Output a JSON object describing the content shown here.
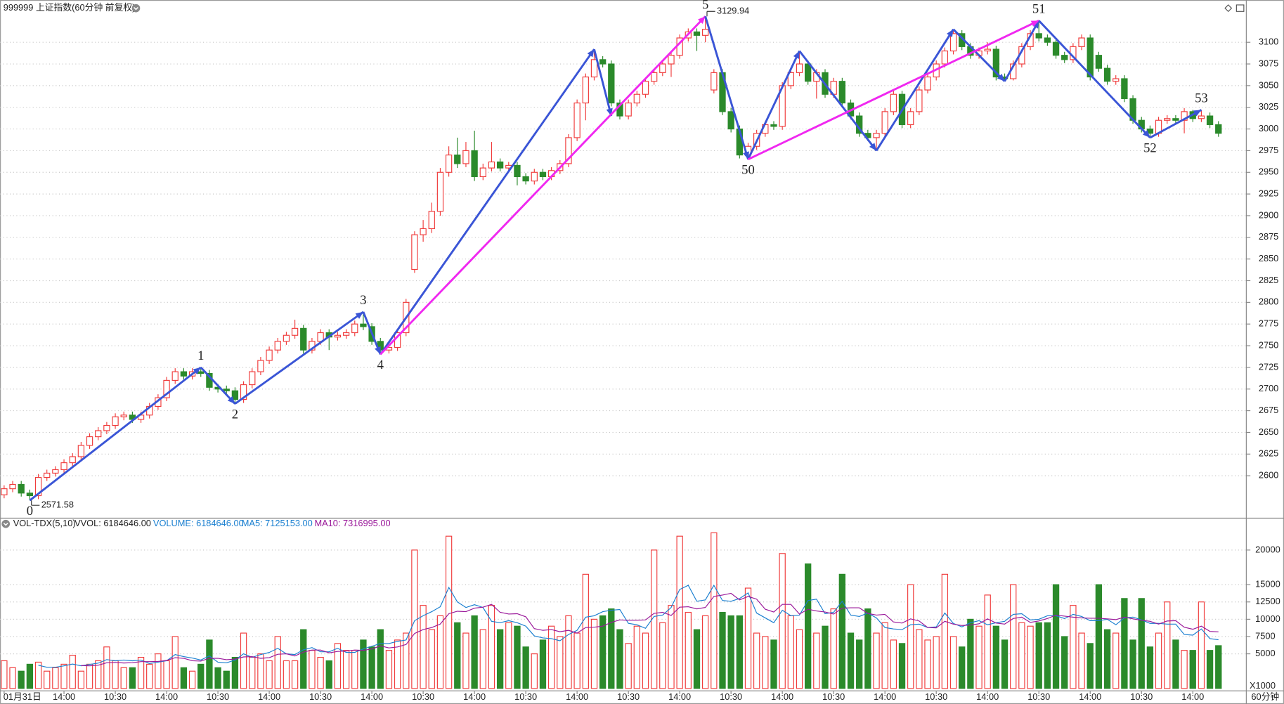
{
  "chart_data": {
    "type": "candlestick",
    "title": "999999 上证指数(60分钟 前复权)",
    "period_label": "60分钟",
    "unit_label": "X1000",
    "up_color": "#f03c3c",
    "down_color": "#2b8a2b",
    "ylim": [
      2552,
      3145
    ],
    "yticks": [
      2600,
      2625,
      2650,
      2675,
      2700,
      2725,
      2750,
      2775,
      2800,
      2825,
      2850,
      2875,
      2900,
      2925,
      2950,
      2975,
      3000,
      3025,
      3050,
      3075,
      3100
    ],
    "grid": true,
    "categories": [
      "01月31日",
      null,
      null,
      null,
      null,
      null,
      null,
      "14:00",
      null,
      null,
      null,
      null,
      null,
      "10:30",
      null,
      null,
      null,
      null,
      null,
      "14:00",
      null,
      null,
      null,
      null,
      null,
      "10:30",
      null,
      null,
      null,
      null,
      null,
      "14:00",
      null,
      null,
      null,
      null,
      null,
      "10:30",
      null,
      null,
      null,
      null,
      null,
      "14:00",
      null,
      null,
      null,
      null,
      null,
      "10:30",
      null,
      null,
      null,
      null,
      null,
      "14:00",
      null,
      null,
      null,
      null,
      null,
      "10:30",
      null,
      null,
      null,
      null,
      null,
      "14:00",
      null,
      null,
      null,
      null,
      null,
      "10:30",
      null,
      null,
      null,
      null,
      null,
      "14:00",
      null,
      null,
      null,
      null,
      null,
      "10:30",
      null,
      null,
      null,
      null,
      null,
      "14:00",
      null,
      null,
      null,
      null,
      null,
      "10:30",
      null,
      null,
      null,
      null,
      null,
      "14:00",
      null,
      null,
      null,
      null,
      null,
      "10:30",
      null,
      null,
      null,
      null,
      null,
      "14:00",
      null,
      null,
      null,
      null,
      null,
      "10:30",
      null,
      null,
      null,
      null,
      null,
      "14:00",
      null,
      null,
      null,
      null,
      null,
      "10:30",
      null,
      null,
      null,
      null,
      null,
      "14:00",
      null,
      null,
      null
    ],
    "candles": [
      [
        2578,
        2589,
        2574,
        2585
      ],
      [
        2585,
        2594,
        2581,
        2590
      ],
      [
        2590,
        2594,
        2576,
        2580
      ],
      [
        2580,
        2584,
        2571.58,
        2577
      ],
      [
        2577,
        2602,
        2573,
        2598
      ],
      [
        2598,
        2607,
        2594,
        2603
      ],
      [
        2603,
        2611,
        2599,
        2607
      ],
      [
        2607,
        2619,
        2603,
        2615
      ],
      [
        2615,
        2626,
        2611,
        2622
      ],
      [
        2622,
        2639,
        2618,
        2635
      ],
      [
        2635,
        2649,
        2631,
        2645
      ],
      [
        2645,
        2656,
        2641,
        2652
      ],
      [
        2652,
        2662,
        2648,
        2658
      ],
      [
        2658,
        2672,
        2654,
        2668
      ],
      [
        2668,
        2674,
        2664,
        2670
      ],
      [
        2670,
        2674,
        2661,
        2665
      ],
      [
        2665,
        2674,
        2661,
        2670
      ],
      [
        2670,
        2684,
        2666,
        2680
      ],
      [
        2680,
        2694,
        2676,
        2690
      ],
      [
        2690,
        2714,
        2686,
        2710
      ],
      [
        2710,
        2724,
        2706,
        2720
      ],
      [
        2720,
        2724,
        2711,
        2715
      ],
      [
        2715,
        2724,
        2711,
        2720
      ],
      [
        2720,
        2725,
        2714,
        2718
      ],
      [
        2718,
        2722,
        2698,
        2702
      ],
      [
        2702,
        2706,
        2696,
        2700
      ],
      [
        2700,
        2704,
        2694,
        2698
      ],
      [
        2698,
        2702,
        2683,
        2688
      ],
      [
        2688,
        2709,
        2684,
        2705
      ],
      [
        2705,
        2724,
        2701,
        2720
      ],
      [
        2720,
        2737,
        2716,
        2733
      ],
      [
        2733,
        2749,
        2729,
        2745
      ],
      [
        2745,
        2759,
        2741,
        2755
      ],
      [
        2755,
        2766,
        2751,
        2762
      ],
      [
        2762,
        2780,
        2758,
        2770
      ],
      [
        2770,
        2774,
        2741,
        2745
      ],
      [
        2745,
        2759,
        2741,
        2755
      ],
      [
        2755,
        2769,
        2751,
        2765
      ],
      [
        2765,
        2769,
        2745,
        2760
      ],
      [
        2760,
        2766,
        2756,
        2762
      ],
      [
        2762,
        2769,
        2758,
        2765
      ],
      [
        2765,
        2779,
        2761,
        2775
      ],
      [
        2775,
        2789,
        2768,
        2772
      ],
      [
        2772,
        2776,
        2751,
        2755
      ],
      [
        2755,
        2759,
        2740,
        2745
      ],
      [
        2745,
        2752,
        2741,
        2748
      ],
      [
        2748,
        2769,
        2744,
        2765
      ],
      [
        2765,
        2804,
        2761,
        2800
      ],
      [
        2838,
        2882,
        2834,
        2878
      ],
      [
        2878,
        2895,
        2870,
        2885
      ],
      [
        2885,
        2915,
        2880,
        2905
      ],
      [
        2905,
        2955,
        2900,
        2950
      ],
      [
        2950,
        2980,
        2945,
        2970
      ],
      [
        2970,
        2990,
        2955,
        2960
      ],
      [
        2960,
        2985,
        2956,
        2975
      ],
      [
        2975,
        2998,
        2940,
        2945
      ],
      [
        2945,
        2960,
        2941,
        2955
      ],
      [
        2955,
        2985,
        2951,
        2962
      ],
      [
        2962,
        2966,
        2951,
        2955
      ],
      [
        2955,
        2962,
        2951,
        2958
      ],
      [
        2958,
        2962,
        2935,
        2945
      ],
      [
        2945,
        2949,
        2936,
        2940
      ],
      [
        2940,
        2954,
        2936,
        2950
      ],
      [
        2950,
        2954,
        2941,
        2945
      ],
      [
        2945,
        2956,
        2941,
        2952
      ],
      [
        2952,
        2964,
        2948,
        2960
      ],
      [
        2960,
        2994,
        2956,
        2990
      ],
      [
        2990,
        3034,
        2986,
        3030
      ],
      [
        3030,
        3064,
        3010,
        3060
      ],
      [
        3060,
        3092,
        3056,
        3080
      ],
      [
        3080,
        3084,
        3071,
        3075
      ],
      [
        3075,
        3079,
        3026,
        3030
      ],
      [
        3030,
        3034,
        3011,
        3015
      ],
      [
        3015,
        3034,
        3011,
        3030
      ],
      [
        3030,
        3044,
        3026,
        3040
      ],
      [
        3040,
        3059,
        3036,
        3055
      ],
      [
        3055,
        3069,
        3051,
        3065
      ],
      [
        3065,
        3079,
        3061,
        3075
      ],
      [
        3075,
        3089,
        3060,
        3085
      ],
      [
        3085,
        3109,
        3081,
        3105
      ],
      [
        3105,
        3116,
        3101,
        3112
      ],
      [
        3112,
        3116,
        3090,
        3108
      ],
      [
        3108,
        3129.94,
        3100,
        3115
      ],
      [
        3045,
        3069,
        3041,
        3065
      ],
      [
        3065,
        3069,
        3016,
        3020
      ],
      [
        3020,
        3024,
        2996,
        3000
      ],
      [
        3000,
        3004,
        2966,
        2970
      ],
      [
        2970,
        2984,
        2965,
        2980
      ],
      [
        2980,
        2999,
        2976,
        2995
      ],
      [
        2995,
        3009,
        2991,
        3005
      ],
      [
        3005,
        3009,
        2999,
        3003
      ],
      [
        3003,
        3054,
        2999,
        3050
      ],
      [
        3050,
        3069,
        3046,
        3065
      ],
      [
        3065,
        3090,
        3061,
        3075
      ],
      [
        3075,
        3079,
        3051,
        3055
      ],
      [
        3055,
        3069,
        3035,
        3065
      ],
      [
        3065,
        3069,
        3036,
        3040
      ],
      [
        3040,
        3059,
        3036,
        3055
      ],
      [
        3055,
        3059,
        3026,
        3030
      ],
      [
        3030,
        3034,
        3011,
        3015
      ],
      [
        3015,
        3019,
        2991,
        2995
      ],
      [
        2995,
        2999,
        2986,
        2990
      ],
      [
        2990,
        2999,
        2975,
        2995
      ],
      [
        2995,
        3024,
        2991,
        3020
      ],
      [
        3020,
        3044,
        3016,
        3040
      ],
      [
        3040,
        3044,
        3001,
        3005
      ],
      [
        3005,
        3024,
        3001,
        3020
      ],
      [
        3020,
        3049,
        3016,
        3045
      ],
      [
        3045,
        3064,
        3041,
        3060
      ],
      [
        3060,
        3079,
        3056,
        3075
      ],
      [
        3075,
        3094,
        3071,
        3090
      ],
      [
        3090,
        3115,
        3086,
        3110
      ],
      [
        3110,
        3114,
        3091,
        3095
      ],
      [
        3095,
        3099,
        3081,
        3085
      ],
      [
        3085,
        3094,
        3081,
        3090
      ],
      [
        3090,
        3100,
        3086,
        3092
      ],
      [
        3092,
        3096,
        3056,
        3060
      ],
      [
        3060,
        3064,
        3055,
        3058
      ],
      [
        3058,
        3079,
        3056,
        3075
      ],
      [
        3075,
        3099,
        3071,
        3095
      ],
      [
        3095,
        3114,
        3091,
        3110
      ],
      [
        3110,
        3125,
        3101,
        3105
      ],
      [
        3105,
        3109,
        3096,
        3100
      ],
      [
        3100,
        3104,
        3081,
        3085
      ],
      [
        3085,
        3089,
        3076,
        3080
      ],
      [
        3080,
        3099,
        3076,
        3095
      ],
      [
        3095,
        3109,
        3091,
        3105
      ],
      [
        3105,
        3109,
        3056,
        3060
      ],
      [
        3085,
        3089,
        3066,
        3070
      ],
      [
        3070,
        3074,
        3051,
        3055
      ],
      [
        3055,
        3062,
        3051,
        3058
      ],
      [
        3058,
        3062,
        3031,
        3035
      ],
      [
        3035,
        3039,
        3006,
        3010
      ],
      [
        3010,
        3014,
        2996,
        3000
      ],
      [
        3000,
        3004,
        2990,
        2995
      ],
      [
        2995,
        3014,
        2991,
        3010
      ],
      [
        3010,
        3016,
        3006,
        3012
      ],
      [
        3012,
        3016,
        3006,
        3010
      ],
      [
        3010,
        3024,
        2995,
        3020
      ],
      [
        3020,
        3022,
        3008,
        3012
      ],
      [
        3012,
        3022,
        3008,
        3015
      ],
      [
        3015,
        3019,
        3001,
        3005
      ],
      [
        3005,
        3009,
        2991,
        2995
      ]
    ],
    "max_mark": {
      "index": 82,
      "value": 3129.94
    },
    "min_mark": {
      "index": 3,
      "value": 2571.58
    },
    "waves": [
      {
        "label": "0",
        "index": 3,
        "price": 2571.58,
        "position": "below"
      },
      {
        "label": "1",
        "index": 23,
        "price": 2725,
        "position": "above"
      },
      {
        "label": "2",
        "index": 27,
        "price": 2683,
        "position": "below"
      },
      {
        "label": "3",
        "index": 42,
        "price": 2789,
        "position": "above"
      },
      {
        "label": "4",
        "index": 44,
        "price": 2740,
        "position": "below"
      },
      {
        "label": "5",
        "index": 82,
        "price": 3129.94,
        "position": "above"
      },
      {
        "label": "50",
        "index": 87,
        "price": 2965,
        "position": "below"
      },
      {
        "label": "51",
        "index": 121,
        "price": 3125,
        "position": "above"
      },
      {
        "label": "52",
        "index": 134,
        "price": 2990,
        "position": "below"
      },
      {
        "label": "53",
        "index": 140,
        "price": 3022,
        "position": "above"
      }
    ],
    "segments": [
      {
        "from": [
          3,
          2571.58
        ],
        "to": [
          23,
          2725
        ],
        "color": "#3a55d6"
      },
      {
        "from": [
          23,
          2725
        ],
        "to": [
          27,
          2683
        ],
        "color": "#3a55d6"
      },
      {
        "from": [
          27,
          2683
        ],
        "to": [
          42,
          2789
        ],
        "color": "#3a55d6"
      },
      {
        "from": [
          42,
          2789
        ],
        "to": [
          44,
          2740
        ],
        "color": "#3a55d6"
      },
      {
        "from": [
          44,
          2740
        ],
        "to": [
          69,
          3092
        ],
        "color": "#3a55d6"
      },
      {
        "from": [
          69,
          3092
        ],
        "to": [
          71,
          3015
        ],
        "color": "#3a55d6"
      },
      {
        "from": [
          44,
          2740
        ],
        "to": [
          82,
          3129.94
        ],
        "color": "#f028f0"
      },
      {
        "from": [
          82,
          3129.94
        ],
        "to": [
          87,
          2965
        ],
        "color": "#3a55d6"
      },
      {
        "from": [
          87,
          2965
        ],
        "to": [
          93,
          3090
        ],
        "color": "#3a55d6"
      },
      {
        "from": [
          93,
          3090
        ],
        "to": [
          102,
          2975
        ],
        "color": "#3a55d6"
      },
      {
        "from": [
          102,
          2975
        ],
        "to": [
          111,
          3115
        ],
        "color": "#3a55d6"
      },
      {
        "from": [
          111,
          3115
        ],
        "to": [
          117,
          3055
        ],
        "color": "#3a55d6"
      },
      {
        "from": [
          117,
          3055
        ],
        "to": [
          121,
          3125
        ],
        "color": "#3a55d6"
      },
      {
        "from": [
          87,
          2965
        ],
        "to": [
          121,
          3125
        ],
        "color": "#f028f0"
      },
      {
        "from": [
          121,
          3125
        ],
        "to": [
          134,
          2990
        ],
        "color": "#3a55d6"
      },
      {
        "from": [
          134,
          2990
        ],
        "to": [
          140,
          3022
        ],
        "color": "#3a55d6"
      }
    ],
    "indicator": {
      "name": "VOL-TDX(5,10)",
      "vvol": "VVOL: 6184646.00",
      "volume": "VOLUME: 6184646.00",
      "ma5": "MA5: 7125153.00",
      "ma10": "MA10: 7316995.00",
      "volume_color": "#1a7fd0",
      "ma5_color": "#1a7fd0",
      "ma10_color": "#9a189a"
    },
    "volume_ylim": [
      0,
      22830
    ],
    "volume_yticks": [
      5000,
      7500,
      10000,
      12500,
      15000,
      20000
    ],
    "volumes": [
      4000,
      3000,
      2500,
      3500,
      3800,
      2500,
      3000,
      3500,
      4800,
      2500,
      3500,
      4000,
      6000,
      4000,
      3000,
      3000,
      4500,
      3500,
      5000,
      4000,
      7500,
      3000,
      2500,
      3500,
      7000,
      3000,
      2500,
      4500,
      8000,
      4500,
      5000,
      4000,
      7500,
      4000,
      4000,
      8500,
      5500,
      4500,
      4000,
      6500,
      5500,
      5500,
      7000,
      6000,
      8500,
      5500,
      7000,
      8000,
      20000,
      12000,
      8500,
      10500,
      22000,
      9500,
      8000,
      10500,
      8500,
      12000,
      8500,
      9500,
      9000,
      6000,
      5000,
      7000,
      9000,
      7500,
      10500,
      8000,
      16500,
      10000,
      10500,
      11500,
      8500,
      6500,
      9000,
      8000,
      20000,
      9500,
      12000,
      22000,
      11000,
      8500,
      10500,
      22500,
      11000,
      10500,
      10500,
      14500,
      8000,
      7500,
      7000,
      19500,
      10500,
      8500,
      18000,
      8000,
      9000,
      11500,
      16500,
      8000,
      7000,
      11500,
      8000,
      9500,
      7000,
      6500,
      15000,
      8500,
      7000,
      7500,
      16500,
      7500,
      6000,
      10000,
      9000,
      13500,
      9000,
      7000,
      15000,
      9500,
      9000,
      9500,
      9500,
      15000,
      7500,
      12000,
      8000,
      6500,
      15000,
      8500,
      8000,
      13000,
      7000,
      13000,
      6000,
      8000,
      12500,
      7000,
      5500,
      5500,
      12500,
      5500,
      6185
    ]
  }
}
